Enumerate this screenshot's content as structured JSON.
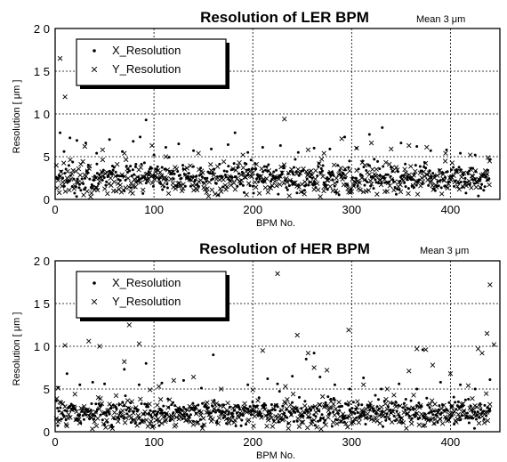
{
  "chart_data": [
    {
      "type": "scatter",
      "title": "Resolution of LER BPM",
      "note": "Mean 3 μm",
      "xlabel": "BPM No.",
      "ylabel": "Resolution [ μm ]",
      "xlim": [
        0,
        450
      ],
      "ylim": [
        0,
        20
      ],
      "xticks": [
        0,
        100,
        200,
        300,
        400
      ],
      "yticks": [
        0,
        5,
        10,
        15,
        20
      ],
      "ytick_labels": [
        "0",
        "5",
        "1 0",
        "1 5",
        "2 0"
      ],
      "grid": true,
      "legend_position": "top-left",
      "series": [
        {
          "name": "X_Resolution",
          "marker": "dot",
          "n_points": 440,
          "base_mean": 2.6,
          "base_sd": 0.9,
          "outliers": [
            [
              5,
              7.8
            ],
            [
              9,
              5.6
            ],
            [
              15,
              7.2
            ],
            [
              22,
              6.9
            ],
            [
              31,
              6.6
            ],
            [
              42,
              5.4
            ],
            [
              55,
              7.0
            ],
            [
              68,
              5.6
            ],
            [
              79,
              6.8
            ],
            [
              86,
              7.3
            ],
            [
              92,
              9.3
            ],
            [
              100,
              5.2
            ],
            [
              112,
              6.1
            ],
            [
              125,
              6.5
            ],
            [
              140,
              5.7
            ],
            [
              158,
              5.9
            ],
            [
              175,
              6.4
            ],
            [
              182,
              7.8
            ],
            [
              195,
              5.5
            ],
            [
              210,
              6.1
            ],
            [
              228,
              6.3
            ],
            [
              246,
              5.5
            ],
            [
              262,
              6.0
            ],
            [
              278,
              5.9
            ],
            [
              293,
              7.3
            ],
            [
              305,
              6.0
            ],
            [
              318,
              7.6
            ],
            [
              331,
              8.4
            ],
            [
              350,
              6.6
            ],
            [
              366,
              6.2
            ],
            [
              380,
              5.7
            ],
            [
              396,
              5.8
            ],
            [
              410,
              5.4
            ],
            [
              425,
              5.2
            ]
          ]
        },
        {
          "name": "Y_Resolution",
          "marker": "x",
          "n_points": 440,
          "base_mean": 2.3,
          "base_sd": 1.0,
          "outliers": [
            [
              5,
              16.5
            ],
            [
              10,
              12.0
            ],
            [
              30,
              6.2
            ],
            [
              48,
              5.8
            ],
            [
              70,
              5.4
            ],
            [
              98,
              6.3
            ],
            [
              112,
              5.0
            ],
            [
              145,
              5.4
            ],
            [
              190,
              5.2
            ],
            [
              232,
              9.4
            ],
            [
              256,
              5.8
            ],
            [
              272,
              5.4
            ],
            [
              290,
              7.1
            ],
            [
              305,
              6.0
            ],
            [
              320,
              6.6
            ],
            [
              340,
              5.9
            ],
            [
              358,
              6.3
            ],
            [
              376,
              6.1
            ],
            [
              395,
              5.4
            ],
            [
              420,
              5.2
            ],
            [
              438,
              4.9
            ]
          ]
        }
      ]
    },
    {
      "type": "scatter",
      "title": "Resolution of HER BPM",
      "note": "Mean 3 μm",
      "xlabel": "BPM No.",
      "ylabel": "Resolution [ μm ]",
      "xlim": [
        0,
        450
      ],
      "ylim": [
        0,
        20
      ],
      "xticks": [
        0,
        100,
        200,
        300,
        400
      ],
      "yticks": [
        0,
        5,
        10,
        15,
        20
      ],
      "ytick_labels": [
        "0",
        "5",
        "1 0",
        "1 5",
        "2 0"
      ],
      "grid": true,
      "legend_position": "top-left",
      "series": [
        {
          "name": "X_Resolution",
          "marker": "dot",
          "n_points": 440,
          "base_mean": 2.3,
          "base_sd": 0.8,
          "outliers": [
            [
              3,
              5.2
            ],
            [
              12,
              6.8
            ],
            [
              25,
              5.5
            ],
            [
              38,
              5.8
            ],
            [
              50,
              5.6
            ],
            [
              70,
              7.3
            ],
            [
              85,
              5.5
            ],
            [
              92,
              8.0
            ],
            [
              108,
              5.7
            ],
            [
              130,
              6.0
            ],
            [
              148,
              5.1
            ],
            [
              160,
              9.0
            ],
            [
              195,
              5.5
            ],
            [
              215,
              6.2
            ],
            [
              225,
              5.6
            ],
            [
              240,
              6.5
            ],
            [
              254,
              8.5
            ],
            [
              262,
              9.2
            ],
            [
              268,
              6.4
            ],
            [
              283,
              5.5
            ],
            [
              298,
              5.0
            ],
            [
              312,
              6.3
            ],
            [
              330,
              5.0
            ],
            [
              348,
              5.6
            ],
            [
              366,
              5.0
            ],
            [
              372,
              9.6
            ],
            [
              390,
              5.8
            ],
            [
              410,
              5.5
            ],
            [
              425,
              5.0
            ],
            [
              440,
              6.1
            ]
          ]
        },
        {
          "name": "Y_Resolution",
          "marker": "x",
          "n_points": 440,
          "base_mean": 2.0,
          "base_sd": 0.9,
          "outliers": [
            [
              3,
              5.1
            ],
            [
              10,
              10.1
            ],
            [
              20,
              4.4
            ],
            [
              34,
              10.6
            ],
            [
              45,
              10.0
            ],
            [
              70,
              8.2
            ],
            [
              75,
              12.5
            ],
            [
              85,
              10.3
            ],
            [
              96,
              4.9
            ],
            [
              105,
              5.3
            ],
            [
              120,
              6.0
            ],
            [
              140,
              6.4
            ],
            [
              168,
              5.0
            ],
            [
              200,
              4.9
            ],
            [
              210,
              9.5
            ],
            [
              225,
              18.5
            ],
            [
              233,
              5.3
            ],
            [
              245,
              11.3
            ],
            [
              256,
              9.2
            ],
            [
              262,
              7.5
            ],
            [
              275,
              7.2
            ],
            [
              297,
              11.9
            ],
            [
              312,
              5.5
            ],
            [
              336,
              5.0
            ],
            [
              358,
              7.1
            ],
            [
              366,
              9.7
            ],
            [
              375,
              9.6
            ],
            [
              382,
              7.8
            ],
            [
              400,
              6.8
            ],
            [
              418,
              5.4
            ],
            [
              428,
              9.7
            ],
            [
              432,
              9.2
            ],
            [
              437,
              11.5
            ],
            [
              440,
              17.2
            ],
            [
              444,
              10.2
            ]
          ]
        }
      ]
    }
  ]
}
